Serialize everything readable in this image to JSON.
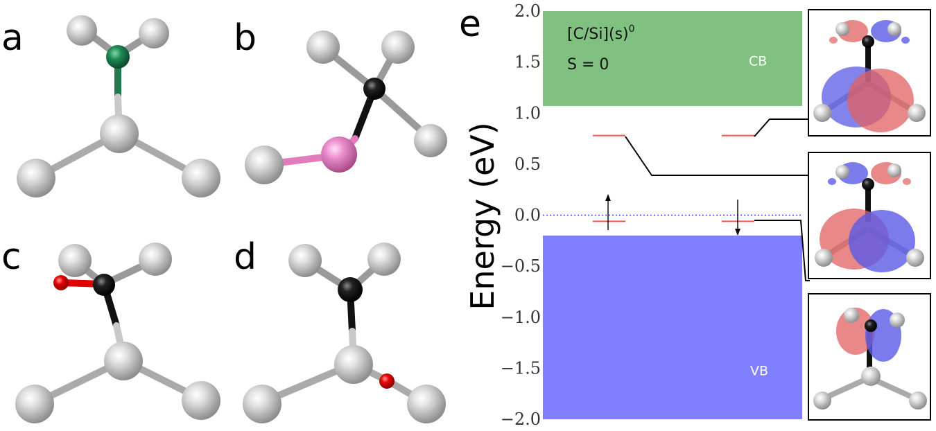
{
  "panels": {
    "a": "a",
    "b": "b",
    "c": "c",
    "d": "d",
    "e": "e"
  },
  "colors": {
    "silicon": "#c8c8c8",
    "nitrogen": "#1f7a4d",
    "carbon": "#111111",
    "boron": "#e37cbf",
    "oxygen": "#e00000",
    "conduction_band": "#80c080",
    "valence_band": "#8080ff",
    "defect_level": "#ff5050",
    "orbital_positive": "#e06060",
    "orbital_negative": "#5a5ae6"
  },
  "chart_data": {
    "type": "energy-level-diagram",
    "ylabel": "Energy (eV)",
    "ylim": [
      -2.0,
      2.0
    ],
    "yticks": [
      "2.0",
      "1.5",
      "1.0",
      "0.5",
      "0.0",
      "−0.5",
      "−1.0",
      "−1.5",
      "−2.0"
    ],
    "ytick_values": [
      2.0,
      1.5,
      1.0,
      0.5,
      0.0,
      -0.5,
      -1.0,
      -1.5,
      -2.0
    ],
    "fermi_level": 0.0,
    "bands": [
      {
        "label": "CB",
        "from": 1.07,
        "to": 2.0
      },
      {
        "label": "VB",
        "from": -2.0,
        "to": -0.2
      }
    ],
    "defect_levels": [
      {
        "channel": "spin-up",
        "energy": 0.78,
        "occupied": false
      },
      {
        "channel": "spin-down",
        "energy": 0.78,
        "occupied": false
      },
      {
        "channel": "spin-up",
        "energy": -0.06,
        "occupied": true
      },
      {
        "channel": "spin-down",
        "energy": -0.06,
        "occupied": true
      }
    ],
    "annotation": {
      "system": "[C/Si](s)",
      "charge": "0",
      "spin": "S = 0"
    }
  }
}
